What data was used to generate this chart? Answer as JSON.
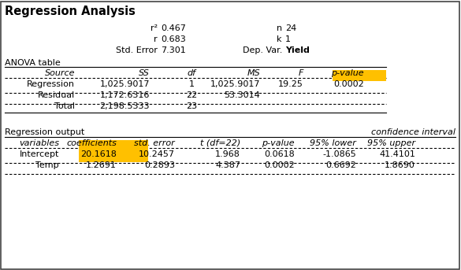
{
  "title": "Regression Analysis",
  "summary": {
    "r2_label": "r²",
    "r2": "0.467",
    "r": "0.683",
    "std_error": "7.301",
    "n": "24",
    "k": "1",
    "dep_var": "Yield"
  },
  "anova_title": "ANOVA table",
  "anova_headers": [
    "Source",
    "SS",
    "df",
    "MS",
    "F",
    "p-value"
  ],
  "anova_rows": [
    [
      "Regression",
      "1,025.9017",
      "1",
      "1,025.9017",
      "19.25",
      "0.0002"
    ],
    [
      "Residual",
      "1,172.6316",
      "22",
      "53.3014",
      "",
      ""
    ],
    [
      "Total",
      "2,198.5333",
      "23",
      "",
      "",
      ""
    ]
  ],
  "anova_highlight_cell": [
    0,
    5
  ],
  "anova_highlight_color": "#FFC000",
  "reg_title": "Regression output",
  "reg_ci_label": "confidence interval",
  "reg_headers": [
    "variables",
    "coefficients",
    "std. error",
    "t (df=22)",
    "p-value",
    "95% lower",
    "95% upper"
  ],
  "reg_rows": [
    [
      "Intercept",
      "20.1618",
      "10.2457",
      "1.968",
      "0.0618",
      "-1.0865",
      "41.4101"
    ],
    [
      "Temp",
      "1.2691",
      "0.2893",
      "4.387",
      "0.0002",
      "0.6692",
      "1.8690"
    ]
  ],
  "reg_highlight_col": 1,
  "reg_highlight_color": "#FFC000",
  "bg_color": "#ffffff",
  "text_color": "#000000",
  "font_size": 8.0,
  "title_font_size": 10.5
}
